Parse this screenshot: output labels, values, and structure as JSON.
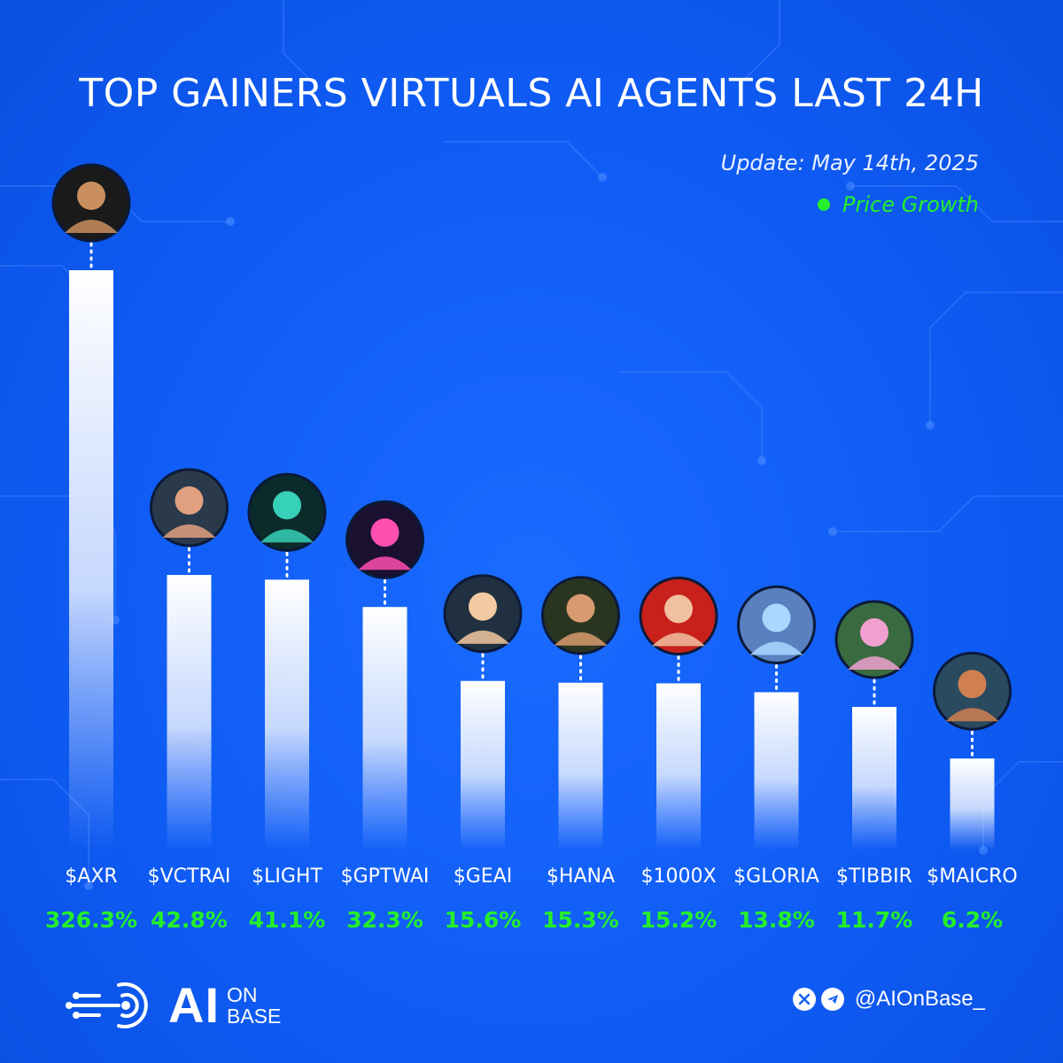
{
  "header": {
    "title": "TOP GAINERS VIRTUALS AI AGENTS LAST 24H",
    "update": "Update: May 14th, 2025"
  },
  "colors": {
    "accent_green": "#25ef2a",
    "background": "#1160f5",
    "bar_top": "#ffffff"
  },
  "chart_data": {
    "type": "bar",
    "title": "TOP GAINERS VIRTUALS AI AGENTS LAST 24H",
    "xlabel": "",
    "ylabel": "",
    "legend": {
      "label": "Price Growth",
      "placement": "top-right"
    },
    "grid": false,
    "categories": [
      "$AXR",
      "$VCTRAI",
      "$LIGHT",
      "$GPTWAI",
      "$GEAI",
      "$HANA",
      "$1000X",
      "$GLORIA",
      "$TIBBIR",
      "$MAICRO"
    ],
    "values": [
      326.3,
      42.8,
      41.1,
      32.3,
      15.6,
      15.3,
      15.2,
      13.8,
      11.7,
      6.2
    ],
    "value_labels": [
      "326.3%",
      "42.8%",
      "41.1%",
      "32.3%",
      "15.6%",
      "15.3%",
      "15.2%",
      "13.8%",
      "11.7%",
      "6.2%"
    ],
    "scale": "non-linear (display)"
  },
  "footer": {
    "logo_main": "AI",
    "logo_sub_1": "ON",
    "logo_sub_2": "BASE",
    "handle": "@AIOnBase_",
    "icons": [
      "x-logo-icon",
      "telegram-icon"
    ]
  }
}
